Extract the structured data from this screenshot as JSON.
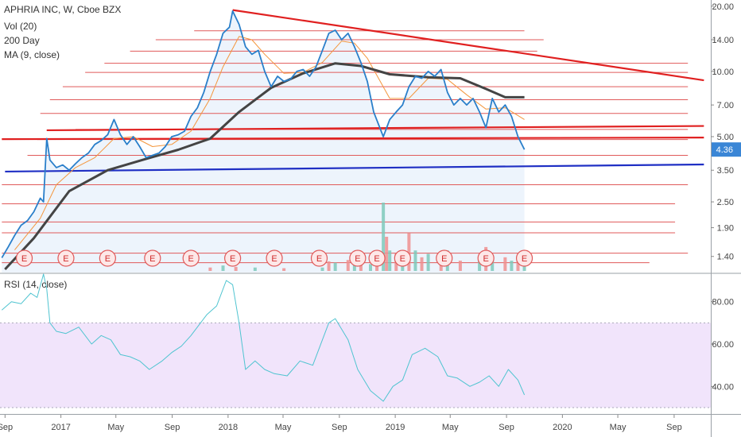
{
  "chart_data": [
    {
      "type": "line",
      "title": "APHRIA INC, W, Cboe BZX",
      "legend": [
        "Vol (20)",
        "200 Day",
        "MA (9, close)"
      ],
      "yscale": "log",
      "y_ticks": [
        "20.00",
        "14.00",
        "10.00",
        "7.00",
        "5.00",
        "3.50",
        "2.50",
        "1.90",
        "1.40"
      ],
      "y_range": [
        1.2,
        21
      ],
      "last_price_label": "4.36",
      "last_price": 4.36,
      "x_ticks": [
        "Sep",
        "2017",
        "May",
        "Sep",
        "2018",
        "May",
        "Sep",
        "2019",
        "May",
        "Sep",
        "2020",
        "May",
        "Sep"
      ],
      "earnings_marker": "E",
      "earnings_dates": [
        "2016-10-13",
        "2017-01-12",
        "2017-04-13",
        "2017-07-20",
        "2017-10-12",
        "2018-01-11",
        "2018-04-12",
        "2018-07-19",
        "2018-10-11",
        "2018-11-22",
        "2019-01-17",
        "2019-04-18",
        "2019-07-18",
        "2019-10-10"
      ],
      "grid": true,
      "price_series": {
        "name": "APHRIA INC",
        "color": "#2a7fca",
        "points": [
          [
            "2016-08-25",
            1.38
          ],
          [
            "2016-09-08",
            1.55
          ],
          [
            "2016-09-22",
            1.75
          ],
          [
            "2016-10-06",
            1.95
          ],
          [
            "2016-10-20",
            2.05
          ],
          [
            "2016-11-03",
            2.25
          ],
          [
            "2016-11-17",
            2.6
          ],
          [
            "2016-11-24",
            2.5
          ],
          [
            "2016-12-01",
            4.9
          ],
          [
            "2016-12-08",
            3.9
          ],
          [
            "2016-12-22",
            3.6
          ],
          [
            "2017-01-05",
            3.7
          ],
          [
            "2017-01-19",
            3.5
          ],
          [
            "2017-02-02",
            3.75
          ],
          [
            "2017-02-16",
            4.0
          ],
          [
            "2017-03-02",
            4.2
          ],
          [
            "2017-03-16",
            4.6
          ],
          [
            "2017-03-30",
            4.8
          ],
          [
            "2017-04-13",
            5.1
          ],
          [
            "2017-04-27",
            6.0
          ],
          [
            "2017-05-11",
            5.1
          ],
          [
            "2017-05-25",
            4.6
          ],
          [
            "2017-06-08",
            5.0
          ],
          [
            "2017-06-22",
            4.5
          ],
          [
            "2017-07-06",
            4.0
          ],
          [
            "2017-07-20",
            4.1
          ],
          [
            "2017-08-03",
            4.2
          ],
          [
            "2017-08-17",
            4.5
          ],
          [
            "2017-08-31",
            5.0
          ],
          [
            "2017-09-14",
            5.1
          ],
          [
            "2017-09-28",
            5.3
          ],
          [
            "2017-10-12",
            6.2
          ],
          [
            "2017-10-26",
            6.8
          ],
          [
            "2017-11-09",
            8.0
          ],
          [
            "2017-11-23",
            10.0
          ],
          [
            "2017-12-07",
            12.0
          ],
          [
            "2017-12-21",
            15.0
          ],
          [
            "2018-01-04",
            16.0
          ],
          [
            "2018-01-11",
            19.0
          ],
          [
            "2018-01-25",
            16.5
          ],
          [
            "2018-02-08",
            13.0
          ],
          [
            "2018-02-22",
            12.0
          ],
          [
            "2018-03-08",
            12.5
          ],
          [
            "2018-03-22",
            10.0
          ],
          [
            "2018-04-05",
            8.5
          ],
          [
            "2018-04-19",
            9.5
          ],
          [
            "2018-05-03",
            9.0
          ],
          [
            "2018-05-17",
            9.2
          ],
          [
            "2018-05-31",
            10.0
          ],
          [
            "2018-06-14",
            10.2
          ],
          [
            "2018-06-28",
            9.5
          ],
          [
            "2018-07-12",
            10.5
          ],
          [
            "2018-07-26",
            12.5
          ],
          [
            "2018-08-09",
            15.0
          ],
          [
            "2018-08-23",
            15.5
          ],
          [
            "2018-09-06",
            14.0
          ],
          [
            "2018-09-20",
            15.0
          ],
          [
            "2018-10-04",
            13.0
          ],
          [
            "2018-10-18",
            11.0
          ],
          [
            "2018-11-01",
            9.0
          ],
          [
            "2018-11-15",
            6.5
          ],
          [
            "2018-12-06",
            5.0
          ],
          [
            "2018-12-20",
            6.0
          ],
          [
            "2019-01-03",
            6.5
          ],
          [
            "2019-01-17",
            7.0
          ],
          [
            "2019-01-31",
            8.5
          ],
          [
            "2019-02-14",
            9.5
          ],
          [
            "2019-02-28",
            9.3
          ],
          [
            "2019-03-14",
            10.0
          ],
          [
            "2019-03-28",
            9.5
          ],
          [
            "2019-04-11",
            10.2
          ],
          [
            "2019-04-25",
            8.0
          ],
          [
            "2019-05-09",
            7.0
          ],
          [
            "2019-05-23",
            7.5
          ],
          [
            "2019-06-06",
            7.0
          ],
          [
            "2019-06-20",
            7.5
          ],
          [
            "2019-07-04",
            6.5
          ],
          [
            "2019-07-18",
            5.5
          ],
          [
            "2019-08-01",
            7.5
          ],
          [
            "2019-08-15",
            6.5
          ],
          [
            "2019-08-29",
            7.0
          ],
          [
            "2019-09-12",
            6.2
          ],
          [
            "2019-09-26",
            5.0
          ],
          [
            "2019-10-10",
            4.36
          ]
        ]
      },
      "ma_series": {
        "name": "MA (9, close)",
        "color": "#f4963c",
        "points": [
          [
            "2016-09-22",
            1.5
          ],
          [
            "2016-11-17",
            2.1
          ],
          [
            "2016-12-22",
            3.0
          ],
          [
            "2017-02-02",
            3.6
          ],
          [
            "2017-03-16",
            4.0
          ],
          [
            "2017-04-27",
            4.9
          ],
          [
            "2017-06-08",
            5.0
          ],
          [
            "2017-07-20",
            4.5
          ],
          [
            "2017-08-31",
            4.6
          ],
          [
            "2017-10-12",
            5.3
          ],
          [
            "2017-11-23",
            7.5
          ],
          [
            "2017-12-21",
            10.5
          ],
          [
            "2018-01-25",
            14.5
          ],
          [
            "2018-02-22",
            14.0
          ],
          [
            "2018-03-22",
            12.0
          ],
          [
            "2018-05-03",
            9.8
          ],
          [
            "2018-06-14",
            9.9
          ],
          [
            "2018-07-26",
            11.0
          ],
          [
            "2018-09-06",
            13.8
          ],
          [
            "2018-10-04",
            13.5
          ],
          [
            "2018-11-01",
            11.5
          ],
          [
            "2018-12-20",
            7.5
          ],
          [
            "2019-01-31",
            7.5
          ],
          [
            "2019-03-14",
            9.3
          ],
          [
            "2019-04-25",
            9.2
          ],
          [
            "2019-06-06",
            7.8
          ],
          [
            "2019-07-18",
            6.7
          ],
          [
            "2019-08-29",
            6.8
          ],
          [
            "2019-10-10",
            6.0
          ]
        ]
      },
      "day200_series": {
        "name": "200 Day",
        "color": "#444444",
        "points": [
          [
            "2016-09-01",
            1.22
          ],
          [
            "2016-11-03",
            1.7
          ],
          [
            "2017-01-19",
            2.8
          ],
          [
            "2017-04-13",
            3.5
          ],
          [
            "2017-07-06",
            3.95
          ],
          [
            "2017-09-14",
            4.35
          ],
          [
            "2017-11-23",
            4.9
          ],
          [
            "2018-01-25",
            6.5
          ],
          [
            "2018-04-05",
            8.4
          ],
          [
            "2018-06-14",
            9.8
          ],
          [
            "2018-08-23",
            10.9
          ],
          [
            "2018-10-18",
            10.6
          ],
          [
            "2018-12-20",
            9.7
          ],
          [
            "2019-03-14",
            9.4
          ],
          [
            "2019-05-23",
            9.3
          ],
          [
            "2019-07-18",
            8.3
          ],
          [
            "2019-08-29",
            7.6
          ],
          [
            "2019-10-10",
            7.6
          ]
        ]
      },
      "volume_bars": [
        [
          "2017-11-23",
          0.05
        ],
        [
          "2017-12-21",
          0.08
        ],
        [
          "2018-01-18",
          0.06
        ],
        [
          "2018-03-01",
          0.05
        ],
        [
          "2018-05-03",
          0.04
        ],
        [
          "2018-07-26",
          0.05
        ],
        [
          "2018-08-09",
          0.14
        ],
        [
          "2018-08-23",
          0.12
        ],
        [
          "2018-09-20",
          0.16
        ],
        [
          "2018-10-04",
          0.15
        ],
        [
          "2018-10-18",
          0.12
        ],
        [
          "2018-11-08",
          0.1
        ],
        [
          "2018-11-22",
          0.15
        ],
        [
          "2018-12-06",
          1.0
        ],
        [
          "2018-12-13",
          0.5
        ],
        [
          "2018-12-20",
          0.3
        ],
        [
          "2019-01-03",
          0.25
        ],
        [
          "2019-01-17",
          0.2
        ],
        [
          "2019-01-31",
          0.55
        ],
        [
          "2019-02-14",
          0.3
        ],
        [
          "2019-02-28",
          0.2
        ],
        [
          "2019-03-14",
          0.25
        ],
        [
          "2019-04-11",
          0.2
        ],
        [
          "2019-04-25",
          0.3
        ],
        [
          "2019-05-23",
          0.15
        ],
        [
          "2019-07-04",
          0.2
        ],
        [
          "2019-07-18",
          0.35
        ],
        [
          "2019-08-01",
          0.15
        ],
        [
          "2019-08-29",
          0.2
        ],
        [
          "2019-09-12",
          0.15
        ],
        [
          "2019-09-26",
          0.2
        ],
        [
          "2019-10-10",
          0.25
        ]
      ],
      "horizontal_lines": [
        {
          "from": "2017-10-19",
          "price": 15.4,
          "to": "2019-10-10",
          "color": "#e05a5a"
        },
        {
          "from": "2017-07-27",
          "price": 14.0,
          "to": "2019-11-21",
          "color": "#e05a5a"
        },
        {
          "from": "2017-06-01",
          "price": 12.4,
          "to": "2019-11-07",
          "color": "#e05a5a"
        },
        {
          "from": "2017-04-06",
          "price": 10.9,
          "to": "2020-10-01",
          "color": "#e05a5a"
        },
        {
          "from": "2017-02-23",
          "price": 9.9,
          "to": "2020-10-01",
          "color": "#e05a5a"
        },
        {
          "from": "2017-01-05",
          "price": 8.5,
          "to": "2020-10-01",
          "color": "#e05a5a"
        },
        {
          "from": "2016-12-08",
          "price": 7.4,
          "to": "2020-10-01",
          "color": "#e05a5a"
        },
        {
          "from": "2016-11-17",
          "price": 6.4,
          "to": "2020-10-01",
          "color": "#e05a5a"
        },
        {
          "from": "2017-02-02",
          "price": 5.4,
          "to": "2020-10-01",
          "color": "#e05a5a"
        },
        {
          "from": "2016-11-10",
          "price": 4.85,
          "to": "2020-10-01",
          "color": "#e05a5a"
        },
        {
          "from": "2016-10-20",
          "price": 4.1,
          "to": "2020-10-01",
          "color": "#e05a5a"
        },
        {
          "from": "2016-08-25",
          "price": 3.0,
          "to": "2020-10-01",
          "color": "#e05a5a"
        },
        {
          "from": "2016-08-25",
          "price": 2.45,
          "to": "2020-09-03",
          "color": "#e05a5a"
        },
        {
          "from": "2016-08-25",
          "price": 2.02,
          "to": "2020-09-03",
          "color": "#e05a5a"
        },
        {
          "from": "2016-08-25",
          "price": 1.8,
          "to": "2020-09-03",
          "color": "#e05a5a"
        },
        {
          "from": "2016-08-25",
          "price": 1.45,
          "to": "2020-10-01",
          "color": "#e05a5a"
        },
        {
          "from": "2016-08-25",
          "price": 1.31,
          "to": "2020-07-09",
          "color": "#e05a5a"
        }
      ],
      "key_lines": [
        {
          "from": [
            "2018-01-11",
            19.2
          ],
          "to": [
            "2020-11-05",
            9.1
          ],
          "color": "#e02020"
        },
        {
          "from": [
            "2016-12-01",
            5.35
          ],
          "to": [
            "2020-11-05",
            5.6
          ],
          "color": "#e02020"
        },
        {
          "from": [
            "2016-08-25",
            4.87
          ],
          "to": [
            "2020-11-05",
            4.95
          ],
          "color": "#e02020"
        },
        {
          "from": [
            "2016-09-01",
            3.45
          ],
          "to": [
            "2020-11-05",
            3.72
          ],
          "color": "#1f2fc4"
        }
      ],
      "fill_color": "#e3eefb"
    },
    {
      "type": "line",
      "title": "RSI (14, close)",
      "y_ticks": [
        "80.00",
        "60.00",
        "40.00"
      ],
      "y_range": [
        27,
        93
      ],
      "band": [
        30,
        70
      ],
      "band_color": "#f1e4fb",
      "series": [
        {
          "color": "#4fc4d0",
          "points": [
            [
              "2016-08-25",
              76
            ],
            [
              "2016-09-15",
              80
            ],
            [
              "2016-10-06",
              79
            ],
            [
              "2016-10-27",
              84
            ],
            [
              "2016-11-10",
              82
            ],
            [
              "2016-11-24",
              93
            ],
            [
              "2016-12-01",
              86
            ],
            [
              "2016-12-08",
              70
            ],
            [
              "2016-12-22",
              66
            ],
            [
              "2017-01-12",
              65
            ],
            [
              "2017-02-09",
              68
            ],
            [
              "2017-03-09",
              60
            ],
            [
              "2017-03-30",
              64
            ],
            [
              "2017-04-20",
              62
            ],
            [
              "2017-05-11",
              55
            ],
            [
              "2017-06-01",
              54
            ],
            [
              "2017-06-22",
              52
            ],
            [
              "2017-07-13",
              48
            ],
            [
              "2017-08-10",
              52
            ],
            [
              "2017-08-31",
              56
            ],
            [
              "2017-09-21",
              59
            ],
            [
              "2017-10-12",
              64
            ],
            [
              "2017-11-02",
              70
            ],
            [
              "2017-11-16",
              74
            ],
            [
              "2017-12-07",
              78
            ],
            [
              "2017-12-28",
              90
            ],
            [
              "2018-01-11",
              88
            ],
            [
              "2018-01-25",
              70
            ],
            [
              "2018-02-08",
              48
            ],
            [
              "2018-03-01",
              52
            ],
            [
              "2018-03-22",
              48
            ],
            [
              "2018-04-12",
              46
            ],
            [
              "2018-05-10",
              45
            ],
            [
              "2018-06-07",
              52
            ],
            [
              "2018-07-05",
              50
            ],
            [
              "2018-08-09",
              70
            ],
            [
              "2018-08-23",
              72
            ],
            [
              "2018-09-20",
              62
            ],
            [
              "2018-10-11",
              48
            ],
            [
              "2018-11-08",
              38
            ],
            [
              "2018-12-06",
              33
            ],
            [
              "2018-12-27",
              40
            ],
            [
              "2019-01-17",
              43
            ],
            [
              "2019-02-07",
              55
            ],
            [
              "2019-03-07",
              58
            ],
            [
              "2019-04-04",
              54
            ],
            [
              "2019-04-25",
              45
            ],
            [
              "2019-05-16",
              44
            ],
            [
              "2019-06-13",
              40
            ],
            [
              "2019-07-04",
              42
            ],
            [
              "2019-07-25",
              45
            ],
            [
              "2019-08-15",
              40
            ],
            [
              "2019-09-05",
              48
            ],
            [
              "2019-09-26",
              43
            ],
            [
              "2019-10-10",
              36
            ]
          ]
        }
      ]
    }
  ],
  "x_axis_min": "2016-08-21",
  "x_axis_max": "2020-11-20"
}
